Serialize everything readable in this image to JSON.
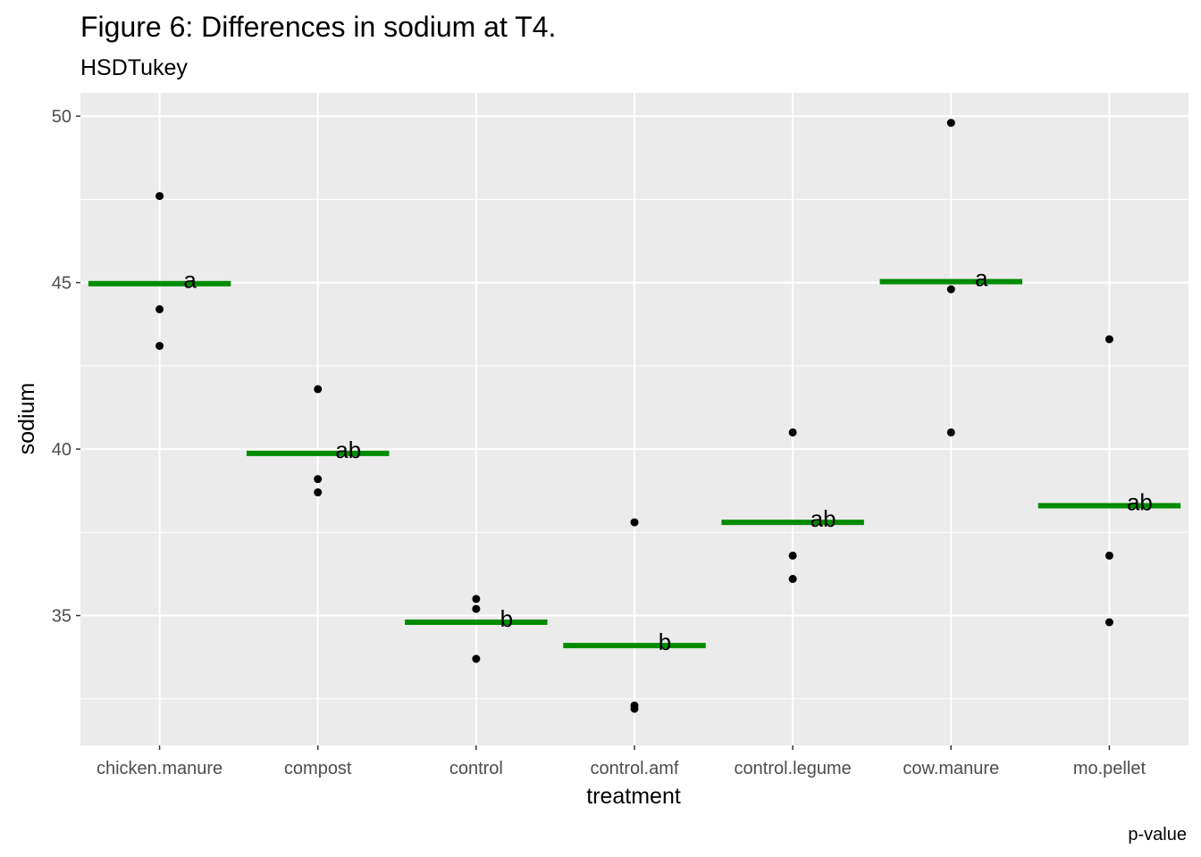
{
  "chart_data": {
    "type": "scatter",
    "title": "Figure 6: Differences in sodium at T4.",
    "subtitle": "HSDTukey",
    "xlabel": "treatment",
    "ylabel": "sodium",
    "caption": "p-value",
    "ylim": [
      31.1,
      50.7
    ],
    "yticks": [
      35,
      40,
      45,
      50
    ],
    "grid": true,
    "colors": {
      "panel": "#ebebeb",
      "grid": "#ffffff",
      "point": "#000000",
      "mean_line": "#008b00"
    },
    "categories": [
      "chicken.manure",
      "compost",
      "control",
      "control.amf",
      "control.legume",
      "cow.manure",
      "mo.pellet"
    ],
    "points": [
      [
        47.6,
        44.2,
        43.1
      ],
      [
        41.8,
        39.1,
        38.7
      ],
      [
        35.5,
        35.2,
        33.7
      ],
      [
        37.8,
        32.3,
        32.2
      ],
      [
        40.5,
        36.8,
        36.1
      ],
      [
        49.8,
        44.8,
        40.5
      ],
      [
        43.3,
        36.8,
        34.8
      ]
    ],
    "means": [
      44.97,
      39.87,
      34.8,
      34.1,
      37.8,
      45.03,
      38.3
    ],
    "group_labels": [
      "a",
      "ab",
      "b",
      "b",
      "ab",
      "a",
      "ab"
    ]
  }
}
